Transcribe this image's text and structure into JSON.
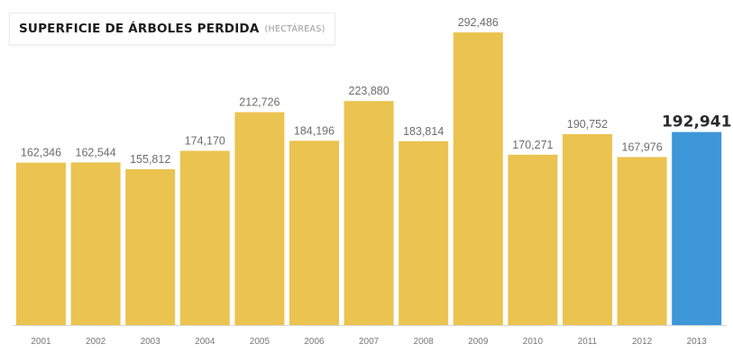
{
  "chart_data": {
    "type": "bar",
    "title": "SUPERFICIE DE ÁRBOLES PERDIDA",
    "subtitle": "(HECTÁREAS)",
    "xlabel": "",
    "ylabel": "",
    "categories": [
      "2001",
      "2002",
      "2003",
      "2004",
      "2005",
      "2006",
      "2007",
      "2008",
      "2009",
      "2010",
      "2011",
      "2012",
      "2013"
    ],
    "values": [
      162346,
      162544,
      155812,
      174170,
      212726,
      184196,
      223880,
      183814,
      292486,
      170271,
      190752,
      167976,
      192941
    ],
    "value_labels": [
      "162,346",
      "162,544",
      "155,812",
      "174,170",
      "212,726",
      "184,196",
      "223,880",
      "183,814",
      "292,486",
      "170,271",
      "190,752",
      "167,976",
      "192,941"
    ],
    "ylim": [
      0,
      292486
    ],
    "grid": false,
    "legend": "none",
    "colors": {
      "bar": "#EBC350",
      "highlight_bar": "#3D97D8",
      "value_text": "#6d6d6d",
      "highlight_text": "#2b2b2b",
      "tick_text": "#777777",
      "baseline": "#d8d8d8"
    },
    "highlight_index": 12
  }
}
